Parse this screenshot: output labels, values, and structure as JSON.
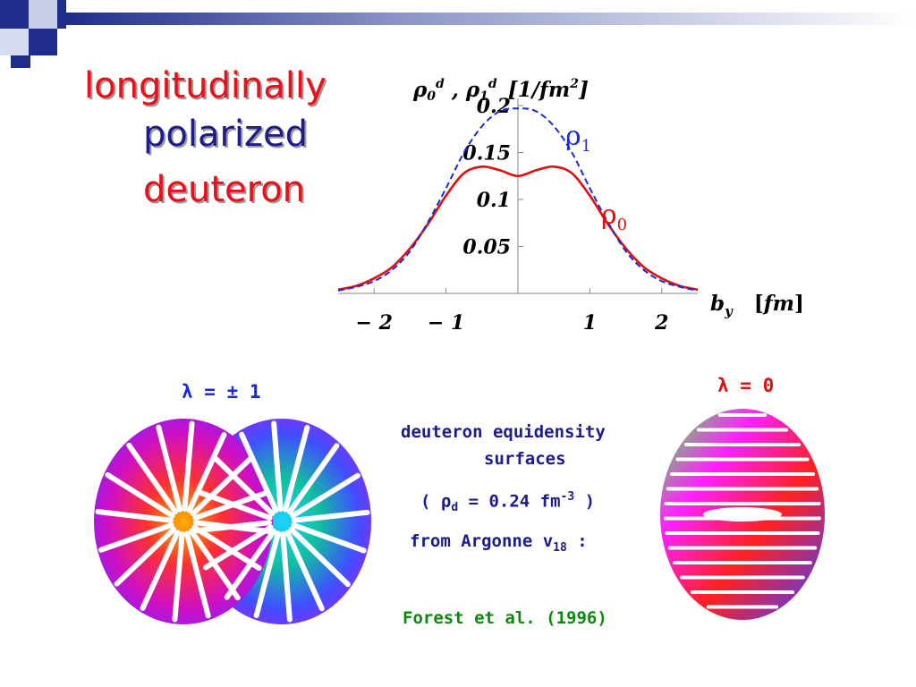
{
  "slide": {
    "title_line1": "longitudinally",
    "title_line2": "polarized",
    "title_line3": "deuteron",
    "lambda_left": "λ = ± 1",
    "lambda_right": "λ = 0",
    "caption_line1": "deuteron equidensity",
    "caption_line2": "surfaces",
    "caption_density_prefix": "( ρ",
    "caption_density_sub": "d",
    "caption_density_mid": " = 0.24 fm",
    "caption_density_sup": "-3",
    "caption_density_suffix": " )",
    "caption_from_prefix": "from Argonne v",
    "caption_from_sub": "18",
    "caption_from_suffix": " :",
    "reference": "Forest et al. (1996)"
  },
  "colors": {
    "title_red": "#e8101a",
    "title_blue": "#1c1c8c",
    "caption_blue": "#1c1c8c",
    "reference_green": "#0a8a0a",
    "rho0_red": "#e01010",
    "rho1_blue": "#1a2ad8"
  },
  "chart_data": {
    "type": "line",
    "ylabel_parts": [
      "ρ",
      "0",
      "d",
      " , ",
      "ρ",
      "1",
      "d",
      "[1/fm",
      "2",
      "]"
    ],
    "xlabel_parts": [
      "b",
      "y",
      "[",
      "fm",
      "]"
    ],
    "xlim": [
      -2.5,
      2.5
    ],
    "ylim": [
      0,
      0.2
    ],
    "x_ticks": [
      -2,
      -1,
      1,
      2
    ],
    "x_tick_labels": [
      "− 2",
      "− 1",
      "1",
      "2"
    ],
    "y_ticks": [
      0.05,
      0.1,
      0.15,
      0.2
    ],
    "y_tick_labels": [
      "0.05",
      "0.1",
      "0.15",
      "0.2"
    ],
    "grid": false,
    "series": [
      {
        "name": "ρ0",
        "label": "ρ",
        "label_sub": "0",
        "style": "solid",
        "color": "#e01010",
        "x": [
          -2.5,
          -2.25,
          -2.0,
          -1.75,
          -1.5,
          -1.25,
          -1.0,
          -0.75,
          -0.5,
          -0.25,
          0,
          0.25,
          0.5,
          0.75,
          1.0,
          1.25,
          1.5,
          1.75,
          2.0,
          2.25,
          2.5
        ],
        "y": [
          0.004,
          0.008,
          0.016,
          0.028,
          0.048,
          0.074,
          0.104,
          0.128,
          0.135,
          0.131,
          0.125,
          0.131,
          0.135,
          0.128,
          0.104,
          0.074,
          0.048,
          0.028,
          0.016,
          0.008,
          0.004
        ]
      },
      {
        "name": "ρ1",
        "label": "ρ",
        "label_sub": "1",
        "style": "dashed",
        "color": "#1a2ad8",
        "x": [
          -2.5,
          -2.25,
          -2.0,
          -1.75,
          -1.5,
          -1.25,
          -1.0,
          -0.75,
          -0.5,
          -0.25,
          0,
          0.25,
          0.5,
          0.75,
          1.0,
          1.25,
          1.5,
          1.75,
          2.0,
          2.25,
          2.5
        ],
        "y": [
          0.003,
          0.007,
          0.013,
          0.025,
          0.045,
          0.076,
          0.112,
          0.15,
          0.178,
          0.194,
          0.197,
          0.194,
          0.178,
          0.15,
          0.112,
          0.076,
          0.045,
          0.025,
          0.013,
          0.007,
          0.003
        ]
      }
    ]
  }
}
